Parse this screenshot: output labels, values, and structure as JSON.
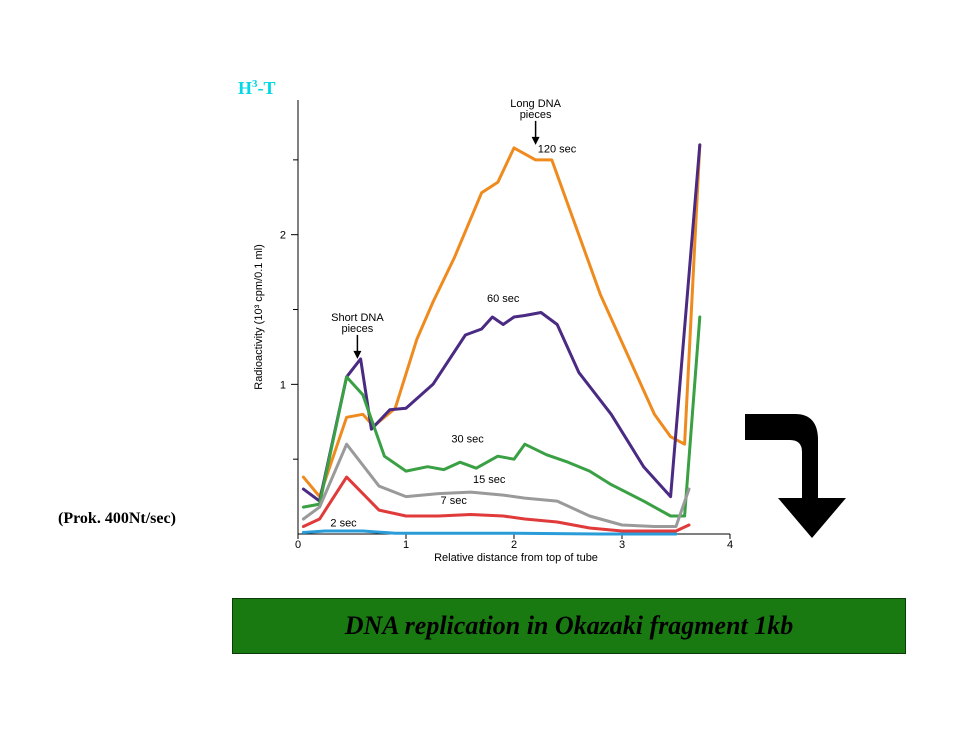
{
  "top_label": {
    "base": "H",
    "sup": "3",
    "rest": "-T"
  },
  "side_note": "(Prok. 400Nt/sec)",
  "banner": {
    "text": "DNA replication in Okazaki fragment 1kb",
    "color": "#1a7a12"
  },
  "chart_data": {
    "type": "line",
    "title": "",
    "xlabel": "Relative distance from top of tube",
    "ylabel": "Radioactivity (10³ cpm/0.1 ml)",
    "xlim": [
      0,
      4
    ],
    "ylim": [
      0,
      2.9
    ],
    "xticks": [
      "0",
      "1",
      "2",
      "3",
      "4"
    ],
    "yticks": [
      "1",
      "2"
    ],
    "grid": false,
    "annotations": [
      {
        "lines": [
          "Long DNA",
          "pieces"
        ],
        "x": 2.2,
        "y": 2.6
      },
      {
        "lines": [
          "Short DNA",
          "pieces"
        ],
        "x": 0.55,
        "y": 1.17
      }
    ],
    "series": [
      {
        "name": "120 sec",
        "color": "#ef8b1e",
        "x": [
          0.05,
          0.2,
          0.45,
          0.6,
          0.7,
          0.9,
          1.1,
          1.25,
          1.45,
          1.7,
          1.85,
          2.0,
          2.2,
          2.35,
          2.55,
          2.8,
          3.05,
          3.3,
          3.45,
          3.58,
          3.72
        ],
        "y": [
          0.38,
          0.25,
          0.78,
          0.8,
          0.72,
          0.84,
          1.3,
          1.55,
          1.85,
          2.28,
          2.35,
          2.58,
          2.5,
          2.5,
          2.1,
          1.6,
          1.2,
          0.8,
          0.65,
          0.6,
          2.6
        ]
      },
      {
        "name": "60 sec",
        "color": "#4a2a82",
        "x": [
          0.05,
          0.2,
          0.45,
          0.58,
          0.68,
          0.85,
          1.0,
          1.25,
          1.55,
          1.7,
          1.8,
          1.9,
          2.0,
          2.1,
          2.25,
          2.4,
          2.6,
          2.9,
          3.2,
          3.45,
          3.72
        ],
        "y": [
          0.3,
          0.22,
          1.05,
          1.17,
          0.7,
          0.83,
          0.84,
          1.0,
          1.33,
          1.37,
          1.45,
          1.4,
          1.45,
          1.46,
          1.48,
          1.4,
          1.08,
          0.8,
          0.45,
          0.25,
          2.6
        ]
      },
      {
        "name": "30 sec",
        "color": "#3aa044",
        "x": [
          0.05,
          0.2,
          0.45,
          0.6,
          0.8,
          1.0,
          1.2,
          1.35,
          1.5,
          1.65,
          1.85,
          2.0,
          2.1,
          2.3,
          2.5,
          2.7,
          2.9,
          3.2,
          3.45,
          3.58,
          3.72
        ],
        "y": [
          0.18,
          0.2,
          1.05,
          0.93,
          0.52,
          0.42,
          0.45,
          0.43,
          0.48,
          0.44,
          0.52,
          0.5,
          0.6,
          0.53,
          0.48,
          0.42,
          0.33,
          0.22,
          0.12,
          0.12,
          1.45
        ]
      },
      {
        "name": "15 sec",
        "color": "#9a9a9a",
        "x": [
          0.05,
          0.2,
          0.45,
          0.75,
          1.0,
          1.3,
          1.6,
          1.9,
          2.1,
          2.4,
          2.7,
          3.0,
          3.3,
          3.5,
          3.62
        ],
        "y": [
          0.1,
          0.18,
          0.6,
          0.32,
          0.25,
          0.27,
          0.28,
          0.26,
          0.24,
          0.22,
          0.12,
          0.06,
          0.05,
          0.05,
          0.3
        ]
      },
      {
        "name": "7 sec",
        "color": "#e03a3a",
        "x": [
          0.05,
          0.2,
          0.45,
          0.75,
          1.0,
          1.3,
          1.6,
          1.9,
          2.1,
          2.4,
          2.7,
          3.0,
          3.3,
          3.5,
          3.62
        ],
        "y": [
          0.05,
          0.1,
          0.38,
          0.16,
          0.12,
          0.12,
          0.13,
          0.12,
          0.1,
          0.08,
          0.04,
          0.02,
          0.02,
          0.02,
          0.06
        ]
      },
      {
        "name": "2 sec",
        "color": "#2a9cd8",
        "x": [
          0.05,
          0.25,
          0.6,
          0.9,
          1.4,
          2.0,
          2.8,
          3.5
        ],
        "y": [
          0.01,
          0.02,
          0.02,
          0.005,
          0.005,
          0.005,
          0.0,
          0.0
        ]
      }
    ],
    "series_labels": [
      {
        "name": "120 sec",
        "x": 2.22,
        "y": 2.55
      },
      {
        "name": "60 sec",
        "x": 1.75,
        "y": 1.55
      },
      {
        "name": "30 sec",
        "x": 1.42,
        "y": 0.61
      },
      {
        "name": "15 sec",
        "x": 1.62,
        "y": 0.34
      },
      {
        "name": "7 sec",
        "x": 1.32,
        "y": 0.2
      },
      {
        "name": "2 sec",
        "x": 0.3,
        "y": 0.05
      }
    ]
  }
}
